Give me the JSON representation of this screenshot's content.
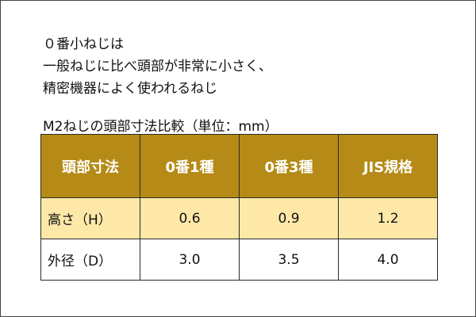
{
  "intro": {
    "lines": [
      "０番小ねじは",
      "一般ねじに比べ頭部が非常に小さく、",
      "精密機器によく使われるねじ"
    ]
  },
  "table": {
    "caption": "M2ねじの頭部寸法比較（単位：mm）",
    "header": [
      "頭部寸法",
      "0番1種",
      "0番3種",
      "JIS規格"
    ],
    "rows": [
      [
        "高さ（H）",
        "0.6",
        "0.9",
        "1.2"
      ],
      [
        "外径（D）",
        "3.0",
        "3.5",
        "4.0"
      ]
    ]
  }
}
